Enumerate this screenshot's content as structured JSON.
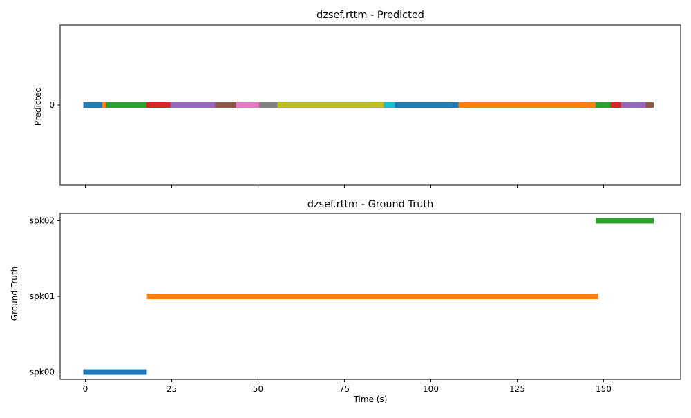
{
  "chart_data": [
    {
      "type": "broken_barh",
      "title": "dzsef.rttm - Predicted",
      "ylabel": "Predicted",
      "xlabel": "",
      "xlim": [
        -7.3,
        172.3
      ],
      "x_ticks": [
        0,
        25,
        50,
        75,
        100,
        125,
        150
      ],
      "x_tick_labels_shown": false,
      "y_categories": [
        "0"
      ],
      "grid": false,
      "segments": [
        {
          "speaker": "0",
          "start": -0.6,
          "end": 4.9,
          "color": "#1f77b4"
        },
        {
          "speaker": "0",
          "start": 4.9,
          "end": 5.9,
          "color": "#ff7f0e"
        },
        {
          "speaker": "0",
          "start": 5.9,
          "end": 17.7,
          "color": "#2ca02c"
        },
        {
          "speaker": "0",
          "start": 17.7,
          "end": 24.6,
          "color": "#d62728"
        },
        {
          "speaker": "0",
          "start": 24.6,
          "end": 37.6,
          "color": "#9467bd"
        },
        {
          "speaker": "0",
          "start": 37.6,
          "end": 43.7,
          "color": "#8c564b"
        },
        {
          "speaker": "0",
          "start": 43.7,
          "end": 50.3,
          "color": "#e377c2"
        },
        {
          "speaker": "0",
          "start": 50.3,
          "end": 55.6,
          "color": "#7f7f7f"
        },
        {
          "speaker": "0",
          "start": 55.6,
          "end": 86.3,
          "color": "#bcbd22"
        },
        {
          "speaker": "0",
          "start": 86.3,
          "end": 89.6,
          "color": "#17becf"
        },
        {
          "speaker": "0",
          "start": 89.6,
          "end": 108.0,
          "color": "#1f77b4"
        },
        {
          "speaker": "0",
          "start": 108.0,
          "end": 147.7,
          "color": "#ff7f0e"
        },
        {
          "speaker": "0",
          "start": 147.7,
          "end": 152.0,
          "color": "#2ca02c"
        },
        {
          "speaker": "0",
          "start": 152.0,
          "end": 155.0,
          "color": "#d62728"
        },
        {
          "speaker": "0",
          "start": 155.0,
          "end": 162.2,
          "color": "#9467bd"
        },
        {
          "speaker": "0",
          "start": 162.2,
          "end": 164.5,
          "color": "#8c564b"
        }
      ]
    },
    {
      "type": "broken_barh",
      "title": "dzsef.rttm - Ground Truth",
      "ylabel": "Ground Truth",
      "xlabel": "Time (s)",
      "xlim": [
        -7.3,
        172.3
      ],
      "x_ticks": [
        0,
        25,
        50,
        75,
        100,
        125,
        150
      ],
      "x_tick_labels_shown": true,
      "y_categories": [
        "spk00",
        "spk01",
        "spk02"
      ],
      "grid": false,
      "segments": [
        {
          "speaker": "spk00",
          "start": -0.6,
          "end": 17.8,
          "color": "#1f77b4"
        },
        {
          "speaker": "spk01",
          "start": 17.8,
          "end": 148.5,
          "color": "#ff7f0e"
        },
        {
          "speaker": "spk02",
          "start": 147.7,
          "end": 164.5,
          "color": "#2ca02c"
        }
      ]
    }
  ]
}
